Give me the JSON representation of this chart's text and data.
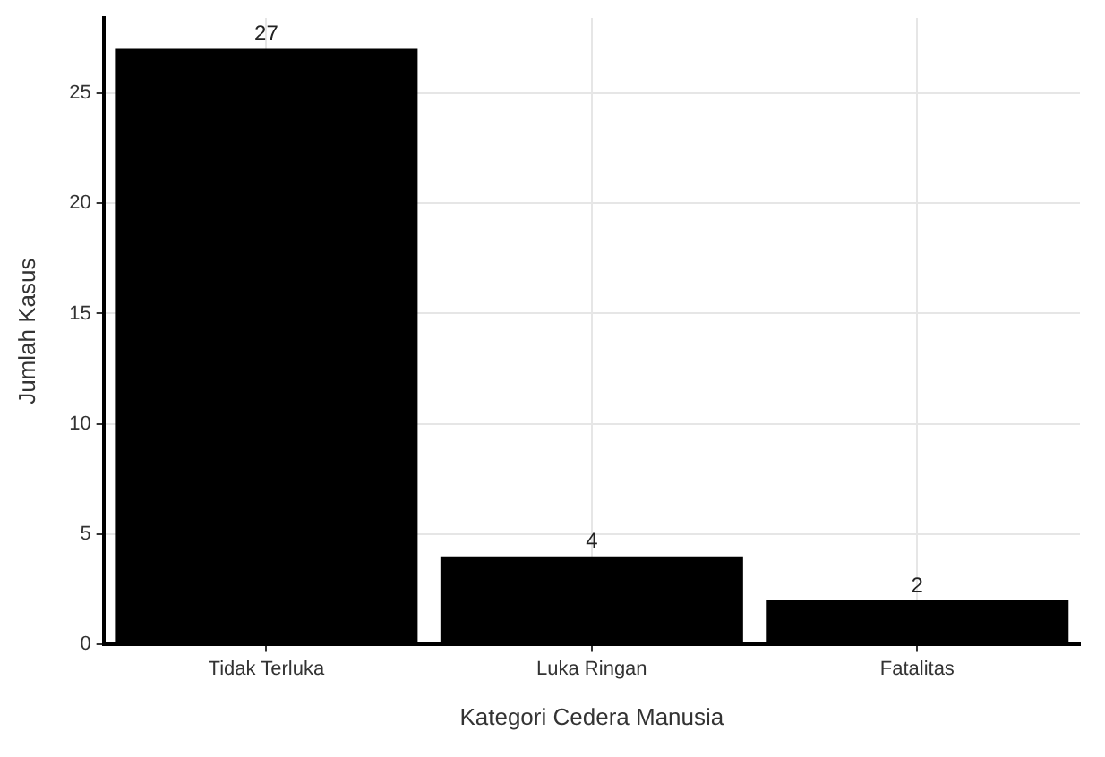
{
  "chart_data": {
    "type": "bar",
    "xlabel": "Kategori Cedera Manusia",
    "ylabel": "Jumlah Kasus",
    "categories": [
      "Tidak Terluka",
      "Luka Ringan",
      "Fatalitas"
    ],
    "values": [
      27,
      4,
      2
    ],
    "color": "#000000",
    "ylim": [
      0,
      28.4
    ],
    "yticks": [
      0,
      5,
      10,
      15,
      20,
      25
    ],
    "grid": true,
    "data_labels": true,
    "legend": false
  }
}
